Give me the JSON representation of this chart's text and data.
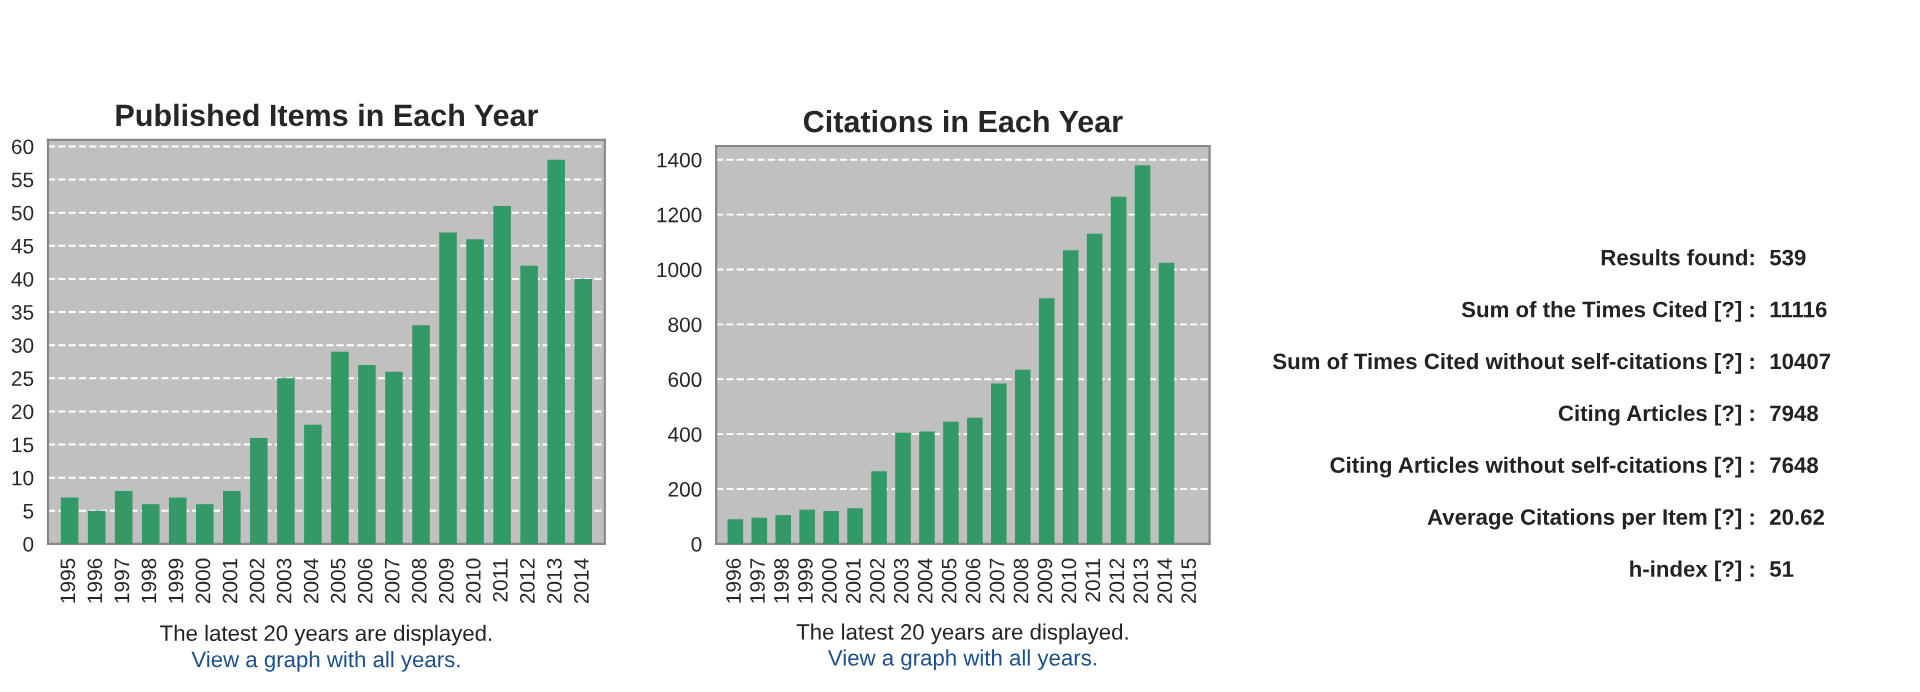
{
  "chart_data": [
    {
      "type": "bar",
      "title": "Published Items in Each Year",
      "color": "#339966",
      "categories": [
        "1995",
        "1996",
        "1997",
        "1998",
        "1999",
        "2000",
        "2001",
        "2002",
        "2003",
        "2004",
        "2005",
        "2006",
        "2007",
        "2008",
        "2009",
        "2010",
        "2011",
        "2012",
        "2013",
        "2014"
      ],
      "values": [
        7,
        5,
        8,
        6,
        7,
        6,
        8,
        16,
        25,
        18,
        29,
        27,
        26,
        33,
        47,
        46,
        51,
        42,
        58,
        40
      ],
      "ylim": [
        0,
        61
      ],
      "yticks": [
        0,
        5,
        10,
        15,
        20,
        25,
        30,
        35,
        40,
        45,
        50,
        55,
        60
      ],
      "grid": "y",
      "annotations": [
        "The latest 20 years are displayed.",
        "View a graph with all years."
      ]
    },
    {
      "type": "bar",
      "title": "Citations in Each Year",
      "color": "#339966",
      "categories": [
        "1996",
        "1997",
        "1998",
        "1999",
        "2000",
        "2001",
        "2002",
        "2003",
        "2004",
        "2005",
        "2006",
        "2007",
        "2008",
        "2009",
        "2010",
        "2011",
        "2012",
        "2013",
        "2014",
        "2015"
      ],
      "values": [
        90,
        95,
        105,
        125,
        120,
        130,
        265,
        405,
        410,
        445,
        460,
        585,
        635,
        895,
        1070,
        1130,
        1265,
        1380,
        1025,
        null
      ],
      "ylim": [
        0,
        1450
      ],
      "yticks": [
        0,
        200,
        400,
        600,
        800,
        1000,
        1200,
        1400
      ],
      "grid": "y",
      "annotations": [
        "The latest 20 years are displayed.",
        "View a graph with all years."
      ]
    },
    {
      "type": "other",
      "annotations": [
        "Results found: 539",
        "Sum of the Times Cited [?] : 11116",
        "Sum of Times Cited without self-citations [?] : 10407",
        "Citing Articles [?] : 7948",
        "Citing Articles without self-citations [?] : 7648",
        "Average Citations per Item [?] : 20.62",
        "h-index [?] : 51"
      ]
    }
  ]
}
